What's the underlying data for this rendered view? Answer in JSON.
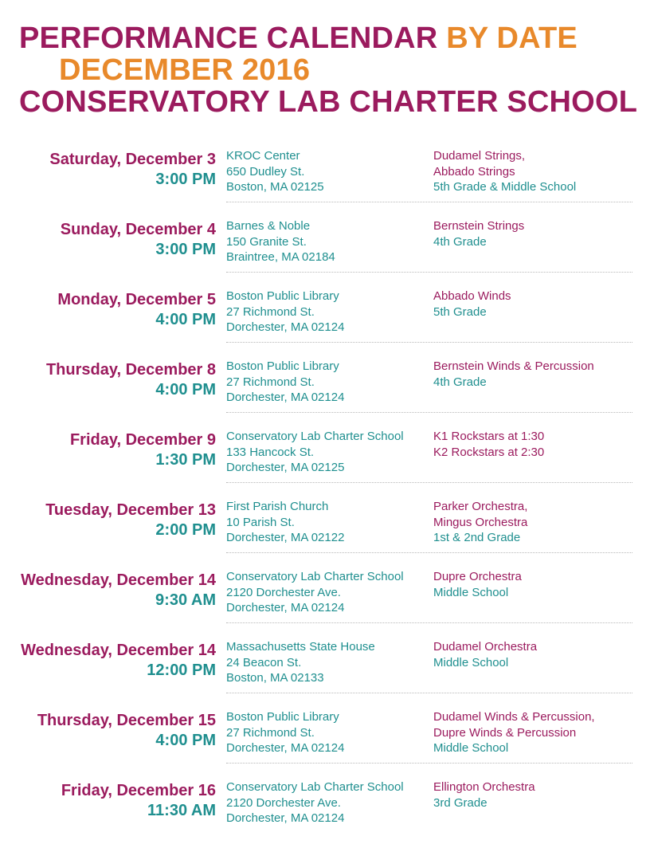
{
  "header": {
    "line1_a": "PERFORMANCE CALENDAR",
    "line1_b": "BY DATE",
    "line2": "DECEMBER 2016",
    "line3": "CONSERVATORY LAB CHARTER SCHOOL"
  },
  "colors": {
    "magenta": "#9b1b5e",
    "orange": "#e8892b",
    "teal": "#1f8f8f"
  },
  "events": [
    {
      "day": "Saturday, December 3",
      "time": "3:00 PM",
      "venue": [
        "KROC Center",
        "650 Dudley St.",
        "Boston, MA 02125"
      ],
      "groups": [
        {
          "text": "Dudamel Strings,",
          "color": "magenta"
        },
        {
          "text": "Abbado Strings",
          "color": "magenta"
        },
        {
          "text": "5th Grade & Middle School",
          "color": "teal"
        }
      ]
    },
    {
      "day": "Sunday, December 4",
      "time": "3:00 PM",
      "venue": [
        "Barnes & Noble",
        "150 Granite St.",
        "Braintree, MA 02184"
      ],
      "groups": [
        {
          "text": "Bernstein Strings",
          "color": "magenta"
        },
        {
          "text": "4th Grade",
          "color": "teal"
        }
      ]
    },
    {
      "day": "Monday, December 5",
      "time": "4:00 PM",
      "venue": [
        "Boston Public Library",
        "27 Richmond St.",
        "Dorchester, MA 02124"
      ],
      "groups": [
        {
          "text": "Abbado Winds",
          "color": "magenta"
        },
        {
          "text": "5th Grade",
          "color": "teal"
        }
      ]
    },
    {
      "day": "Thursday, December 8",
      "time": "4:00 PM",
      "venue": [
        "Boston Public Library",
        "27 Richmond St.",
        "Dorchester, MA 02124"
      ],
      "groups": [
        {
          "text": "Bernstein Winds & Percussion",
          "color": "magenta"
        },
        {
          "text": "4th Grade",
          "color": "teal"
        }
      ]
    },
    {
      "day": "Friday, December 9",
      "time": "1:30 PM",
      "venue": [
        "Conservatory Lab Charter School",
        "133 Hancock St.",
        "Dorchester, MA 02125"
      ],
      "groups": [
        {
          "text": "K1 Rockstars at 1:30",
          "color": "magenta"
        },
        {
          "text": "K2 Rockstars at 2:30",
          "color": "magenta"
        }
      ]
    },
    {
      "day": "Tuesday, December 13",
      "time": "2:00 PM",
      "venue": [
        "First Parish Church",
        "10 Parish St.",
        "Dorchester, MA 02122"
      ],
      "groups": [
        {
          "text": "Parker Orchestra,",
          "color": "magenta"
        },
        {
          "text": "Mingus Orchestra",
          "color": "magenta"
        },
        {
          "text": "1st & 2nd Grade",
          "color": "teal"
        }
      ]
    },
    {
      "day": "Wednesday, December 14",
      "time": "9:30 AM",
      "venue": [
        "Conservatory Lab Charter School",
        "2120 Dorchester Ave.",
        "Dorchester, MA 02124"
      ],
      "groups": [
        {
          "text": "Dupre Orchestra",
          "color": "magenta"
        },
        {
          "text": "Middle School",
          "color": "teal"
        }
      ]
    },
    {
      "day": "Wednesday, December 14",
      "time": "12:00 PM",
      "venue": [
        "Massachusetts State House",
        "24 Beacon St.",
        "Boston, MA 02133"
      ],
      "groups": [
        {
          "text": "Dudamel Orchestra",
          "color": "magenta"
        },
        {
          "text": "Middle School",
          "color": "teal"
        }
      ]
    },
    {
      "day": "Thursday, December 15",
      "time": "4:00 PM",
      "venue": [
        "Boston Public Library",
        "27 Richmond St.",
        "Dorchester, MA 02124"
      ],
      "groups": [
        {
          "text": "Dudamel Winds & Percussion,",
          "color": "magenta"
        },
        {
          "text": "Dupre Winds & Percussion",
          "color": "magenta"
        },
        {
          "text": "Middle School",
          "color": "teal"
        }
      ]
    },
    {
      "day": "Friday, December 16",
      "time": "11:30 AM",
      "venue": [
        "Conservatory Lab Charter School",
        "2120 Dorchester Ave.",
        "Dorchester, MA 02124"
      ],
      "groups": [
        {
          "text": "Ellington Orchestra",
          "color": "magenta"
        },
        {
          "text": "3rd Grade",
          "color": "teal"
        }
      ]
    }
  ]
}
